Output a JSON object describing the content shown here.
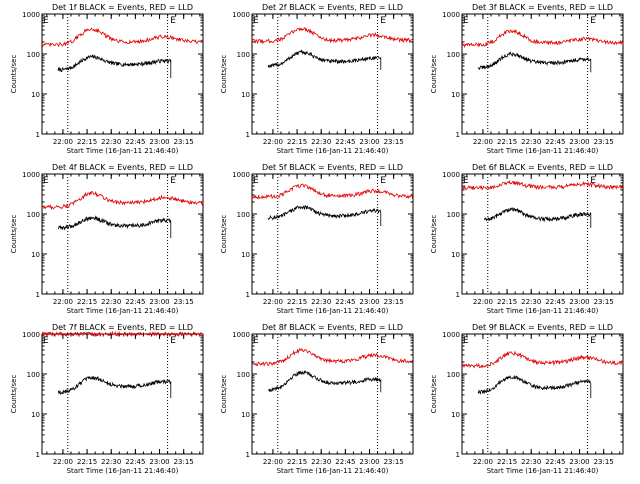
{
  "page": {
    "xaxis_label": "Start Time (16-Jan-11 21:46:40)",
    "yaxis_label": "Counts/sec",
    "colors": {
      "events": "#000000",
      "lld": "#e00000",
      "axis": "#000000"
    }
  },
  "chart_data": [
    {
      "type": "line",
      "title": "Det 1f BLACK = Events, RED = LLD",
      "xlabel": "Start Time (16-Jan-11 21:46:40)",
      "ylabel": "Counts/sec",
      "yscale": "log",
      "ylim": [
        1,
        1000
      ],
      "x_ticks": [
        "22:00",
        "22:15",
        "22:30",
        "22:45",
        "23:00",
        "23:15"
      ],
      "y_ticks": [
        "1",
        "10",
        "100",
        "1000"
      ],
      "markers": [
        {
          "label": "E",
          "time": "21:47"
        },
        {
          "label": "E",
          "time": "23:06"
        }
      ],
      "dotted_lines": [
        "22:03",
        "23:05"
      ],
      "series": [
        {
          "name": "Events",
          "color": "black",
          "start": "21:57",
          "end": "23:07",
          "base": 40,
          "hump_peak": 85,
          "hump_time": "22:18",
          "level_after": 55,
          "bump2": 68,
          "drop_end": 25
        },
        {
          "name": "LLD",
          "color": "red",
          "start": "21:47",
          "end": "23:27",
          "base": 170,
          "hump_peak": 420,
          "hump_time": "22:18",
          "level_after": 200,
          "bump2": 270,
          "drop_end": 220
        }
      ]
    },
    {
      "type": "line",
      "title": "Det 2f BLACK = Events, RED = LLD",
      "xlabel": "Start Time (16-Jan-11 21:46:40)",
      "ylabel": "Counts/sec",
      "yscale": "log",
      "ylim": [
        1,
        1000
      ],
      "x_ticks": [
        "22:00",
        "22:15",
        "22:30",
        "22:45",
        "23:00",
        "23:15"
      ],
      "y_ticks": [
        "1",
        "10",
        "100",
        "1000"
      ],
      "markers": [
        {
          "label": "E",
          "time": "21:47"
        },
        {
          "label": "E",
          "time": "23:06"
        }
      ],
      "dotted_lines": [
        "22:03",
        "23:05"
      ],
      "series": [
        {
          "name": "Events",
          "color": "black",
          "start": "21:57",
          "end": "23:07",
          "base": 50,
          "hump_peak": 110,
          "hump_time": "22:18",
          "level_after": 65,
          "bump2": 80,
          "drop_end": 40
        },
        {
          "name": "LLD",
          "color": "red",
          "start": "21:47",
          "end": "23:27",
          "base": 210,
          "hump_peak": 430,
          "hump_time": "22:18",
          "level_after": 220,
          "bump2": 300,
          "drop_end": 230
        }
      ]
    },
    {
      "type": "line",
      "title": "Det 3f BLACK = Events, RED = LLD",
      "xlabel": "Start Time (16-Jan-11 21:46:40)",
      "ylabel": "Counts/sec",
      "yscale": "log",
      "ylim": [
        1,
        1000
      ],
      "x_ticks": [
        "22:00",
        "22:15",
        "22:30",
        "22:45",
        "23:00",
        "23:15"
      ],
      "y_ticks": [
        "1",
        "10",
        "100",
        "1000"
      ],
      "markers": [
        {
          "label": "E",
          "time": "21:47"
        },
        {
          "label": "E",
          "time": "23:06"
        }
      ],
      "dotted_lines": [
        "22:03",
        "23:05"
      ],
      "series": [
        {
          "name": "Events",
          "color": "black",
          "start": "21:57",
          "end": "23:07",
          "base": 45,
          "hump_peak": 100,
          "hump_time": "22:18",
          "level_after": 60,
          "bump2": 75,
          "drop_end": 35
        },
        {
          "name": "LLD",
          "color": "red",
          "start": "21:47",
          "end": "23:27",
          "base": 170,
          "hump_peak": 380,
          "hump_time": "22:18",
          "level_after": 190,
          "bump2": 240,
          "drop_end": 200
        }
      ]
    },
    {
      "type": "line",
      "title": "Det 4f BLACK = Events, RED = LLD",
      "xlabel": "Start Time (16-Jan-11 21:46:40)",
      "ylabel": "Counts/sec",
      "yscale": "log",
      "ylim": [
        1,
        1000
      ],
      "x_ticks": [
        "22:00",
        "22:15",
        "22:30",
        "22:45",
        "23:00",
        "23:15"
      ],
      "y_ticks": [
        "1",
        "10",
        "100",
        "1000"
      ],
      "markers": [
        {
          "label": "E",
          "time": "21:47"
        },
        {
          "label": "E",
          "time": "23:06"
        }
      ],
      "dotted_lines": [
        "22:03",
        "23:05"
      ],
      "series": [
        {
          "name": "Events",
          "color": "black",
          "start": "21:57",
          "end": "23:07",
          "base": 45,
          "hump_peak": 80,
          "hump_time": "22:18",
          "level_after": 50,
          "bump2": 70,
          "drop_end": 25
        },
        {
          "name": "LLD",
          "color": "red",
          "start": "21:47",
          "end": "23:27",
          "base": 150,
          "hump_peak": 330,
          "hump_time": "22:18",
          "level_after": 190,
          "bump2": 260,
          "drop_end": 180
        }
      ]
    },
    {
      "type": "line",
      "title": "Det 5f BLACK = Events, RED = LLD",
      "xlabel": "Start Time (16-Jan-11 21:46:40)",
      "ylabel": "Counts/sec",
      "yscale": "log",
      "ylim": [
        1,
        1000
      ],
      "x_ticks": [
        "22:00",
        "22:15",
        "22:30",
        "22:45",
        "23:00",
        "23:15"
      ],
      "y_ticks": [
        "1",
        "10",
        "100",
        "1000"
      ],
      "markers": [
        {
          "label": "E",
          "time": "21:47"
        },
        {
          "label": "E",
          "time": "23:06"
        }
      ],
      "dotted_lines": [
        "22:03",
        "23:05"
      ],
      "series": [
        {
          "name": "Events",
          "color": "black",
          "start": "21:57",
          "end": "23:07",
          "base": 80,
          "hump_peak": 150,
          "hump_time": "22:18",
          "level_after": 90,
          "bump2": 120,
          "drop_end": 50
        },
        {
          "name": "LLD",
          "color": "red",
          "start": "21:47",
          "end": "23:27",
          "base": 270,
          "hump_peak": 520,
          "hump_time": "22:18",
          "level_after": 280,
          "bump2": 380,
          "drop_end": 300
        }
      ]
    },
    {
      "type": "line",
      "title": "Det 6f BLACK = Events, RED = LLD",
      "xlabel": "Start Time (16-Jan-11 21:46:40)",
      "ylabel": "Counts/sec",
      "yscale": "log",
      "ylim": [
        1,
        1000
      ],
      "x_ticks": [
        "22:00",
        "22:15",
        "22:30",
        "22:45",
        "23:00",
        "23:15"
      ],
      "y_ticks": [
        "1",
        "10",
        "100",
        "1000"
      ],
      "markers": [
        {
          "label": "E",
          "time": "21:47"
        },
        {
          "label": "E",
          "time": "23:06"
        }
      ],
      "dotted_lines": [
        "22:03",
        "23:05"
      ],
      "series": [
        {
          "name": "Events",
          "color": "black",
          "start": "22:01",
          "end": "23:07",
          "base": 70,
          "hump_peak": 130,
          "hump_time": "22:18",
          "level_after": 75,
          "bump2": 100,
          "drop_end": 45
        },
        {
          "name": "LLD",
          "color": "red",
          "start": "21:47",
          "end": "23:27",
          "base": 450,
          "hump_peak": 600,
          "hump_time": "22:18",
          "level_after": 470,
          "bump2": 560,
          "drop_end": 480
        }
      ]
    },
    {
      "type": "line",
      "title": "Det 7f BLACK = Events, RED = LLD",
      "xlabel": "Start Time (16-Jan-11 21:46:40)",
      "ylabel": "Counts/sec",
      "yscale": "log",
      "ylim": [
        1,
        1000
      ],
      "x_ticks": [
        "22:00",
        "22:15",
        "22:30",
        "22:45",
        "23:00",
        "23:15"
      ],
      "y_ticks": [
        "1",
        "10",
        "100",
        "1000"
      ],
      "markers": [
        {
          "label": "E",
          "time": "21:47"
        },
        {
          "label": "E",
          "time": "23:06"
        }
      ],
      "dotted_lines": [
        "22:03",
        "23:05"
      ],
      "series": [
        {
          "name": "Events",
          "color": "black",
          "start": "21:57",
          "end": "23:07",
          "base": 35,
          "hump_peak": 80,
          "hump_time": "22:18",
          "level_after": 50,
          "bump2": 65,
          "drop_end": 25
        },
        {
          "name": "LLD",
          "color": "red",
          "start": "21:47",
          "end": "23:27",
          "base": 1000,
          "hump_peak": 1000,
          "hump_time": "22:18",
          "level_after": 1000,
          "bump2": 1000,
          "drop_end": 1000
        }
      ]
    },
    {
      "type": "line",
      "title": "Det 8f BLACK = Events, RED = LLD",
      "xlabel": "Start Time (16-Jan-11 21:46:40)",
      "ylabel": "Counts/sec",
      "yscale": "log",
      "ylim": [
        1,
        1000
      ],
      "x_ticks": [
        "22:00",
        "22:15",
        "22:30",
        "22:45",
        "23:00",
        "23:15"
      ],
      "y_ticks": [
        "1",
        "10",
        "100",
        "1000"
      ],
      "markers": [
        {
          "label": "E",
          "time": "21:47"
        },
        {
          "label": "E",
          "time": "23:06"
        }
      ],
      "dotted_lines": [
        "22:03",
        "23:05"
      ],
      "series": [
        {
          "name": "Events",
          "color": "black",
          "start": "21:57",
          "end": "23:07",
          "base": 40,
          "hump_peak": 110,
          "hump_time": "22:18",
          "level_after": 60,
          "bump2": 75,
          "drop_end": 35
        },
        {
          "name": "LLD",
          "color": "red",
          "start": "21:47",
          "end": "23:27",
          "base": 180,
          "hump_peak": 400,
          "hump_time": "22:18",
          "level_after": 210,
          "bump2": 300,
          "drop_end": 220
        }
      ]
    },
    {
      "type": "line",
      "title": "Det 9f BLACK = Events, RED = LLD",
      "xlabel": "Start Time (16-Jan-11 21:46:40)",
      "ylabel": "Counts/sec",
      "yscale": "log",
      "ylim": [
        1,
        1000
      ],
      "x_ticks": [
        "22:00",
        "22:15",
        "22:30",
        "22:45",
        "23:00",
        "23:15"
      ],
      "y_ticks": [
        "1",
        "10",
        "100",
        "1000"
      ],
      "markers": [
        {
          "label": "E",
          "time": "21:47"
        },
        {
          "label": "E",
          "time": "23:06"
        }
      ],
      "dotted_lines": [
        "22:03",
        "23:05"
      ],
      "series": [
        {
          "name": "Events",
          "color": "black",
          "start": "21:57",
          "end": "23:07",
          "base": 35,
          "hump_peak": 85,
          "hump_time": "22:18",
          "level_after": 45,
          "bump2": 65,
          "drop_end": 25
        },
        {
          "name": "LLD",
          "color": "red",
          "start": "21:47",
          "end": "23:27",
          "base": 160,
          "hump_peak": 330,
          "hump_time": "22:18",
          "level_after": 190,
          "bump2": 260,
          "drop_end": 180
        }
      ]
    }
  ]
}
